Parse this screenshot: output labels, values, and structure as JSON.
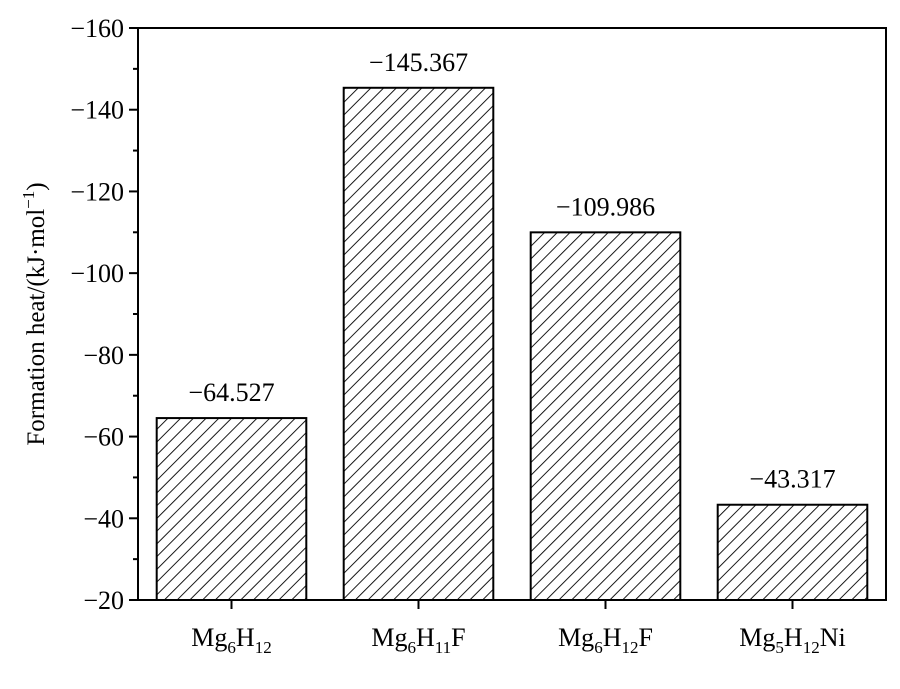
{
  "chart_data": {
    "type": "bar",
    "title": "",
    "xlabel": "",
    "ylabel": "Formation heat/(kJ·mol",
    "ylabel_sup": "−1",
    "ylabel_close": ")",
    "categories": [
      {
        "parts": [
          {
            "t": "Mg",
            "sub": false
          },
          {
            "t": "6",
            "sub": true
          },
          {
            "t": "H",
            "sub": false
          },
          {
            "t": "12",
            "sub": true
          }
        ]
      },
      {
        "parts": [
          {
            "t": "Mg",
            "sub": false
          },
          {
            "t": "6",
            "sub": true
          },
          {
            "t": "H",
            "sub": false
          },
          {
            "t": "11",
            "sub": true
          },
          {
            "t": "F",
            "sub": false
          }
        ]
      },
      {
        "parts": [
          {
            "t": "Mg",
            "sub": false
          },
          {
            "t": "6",
            "sub": true
          },
          {
            "t": "H",
            "sub": false
          },
          {
            "t": "12",
            "sub": true
          },
          {
            "t": "F",
            "sub": false
          }
        ]
      },
      {
        "parts": [
          {
            "t": "Mg",
            "sub": false
          },
          {
            "t": "5",
            "sub": true
          },
          {
            "t": "H",
            "sub": false
          },
          {
            "t": "12",
            "sub": true
          },
          {
            "t": "Ni",
            "sub": false
          }
        ]
      }
    ],
    "values": [
      -64.527,
      -145.367,
      -109.986,
      -43.317
    ],
    "data_labels": [
      "−64.527",
      "−145.367",
      "−109.986",
      "−43.317"
    ],
    "ylim": [
      -20,
      -160
    ],
    "yticks": [
      -20,
      -40,
      -60,
      -80,
      -100,
      -120,
      -140,
      -160
    ],
    "ytick_labels": [
      "−20",
      "−40",
      "−60",
      "−80",
      "−100",
      "−120",
      "−140",
      "−160"
    ],
    "bar_fill": "hatched",
    "grid": false,
    "legend": "none"
  },
  "colors": {
    "axis": "#000000",
    "hatch": "#000000",
    "background": "#ffffff"
  }
}
